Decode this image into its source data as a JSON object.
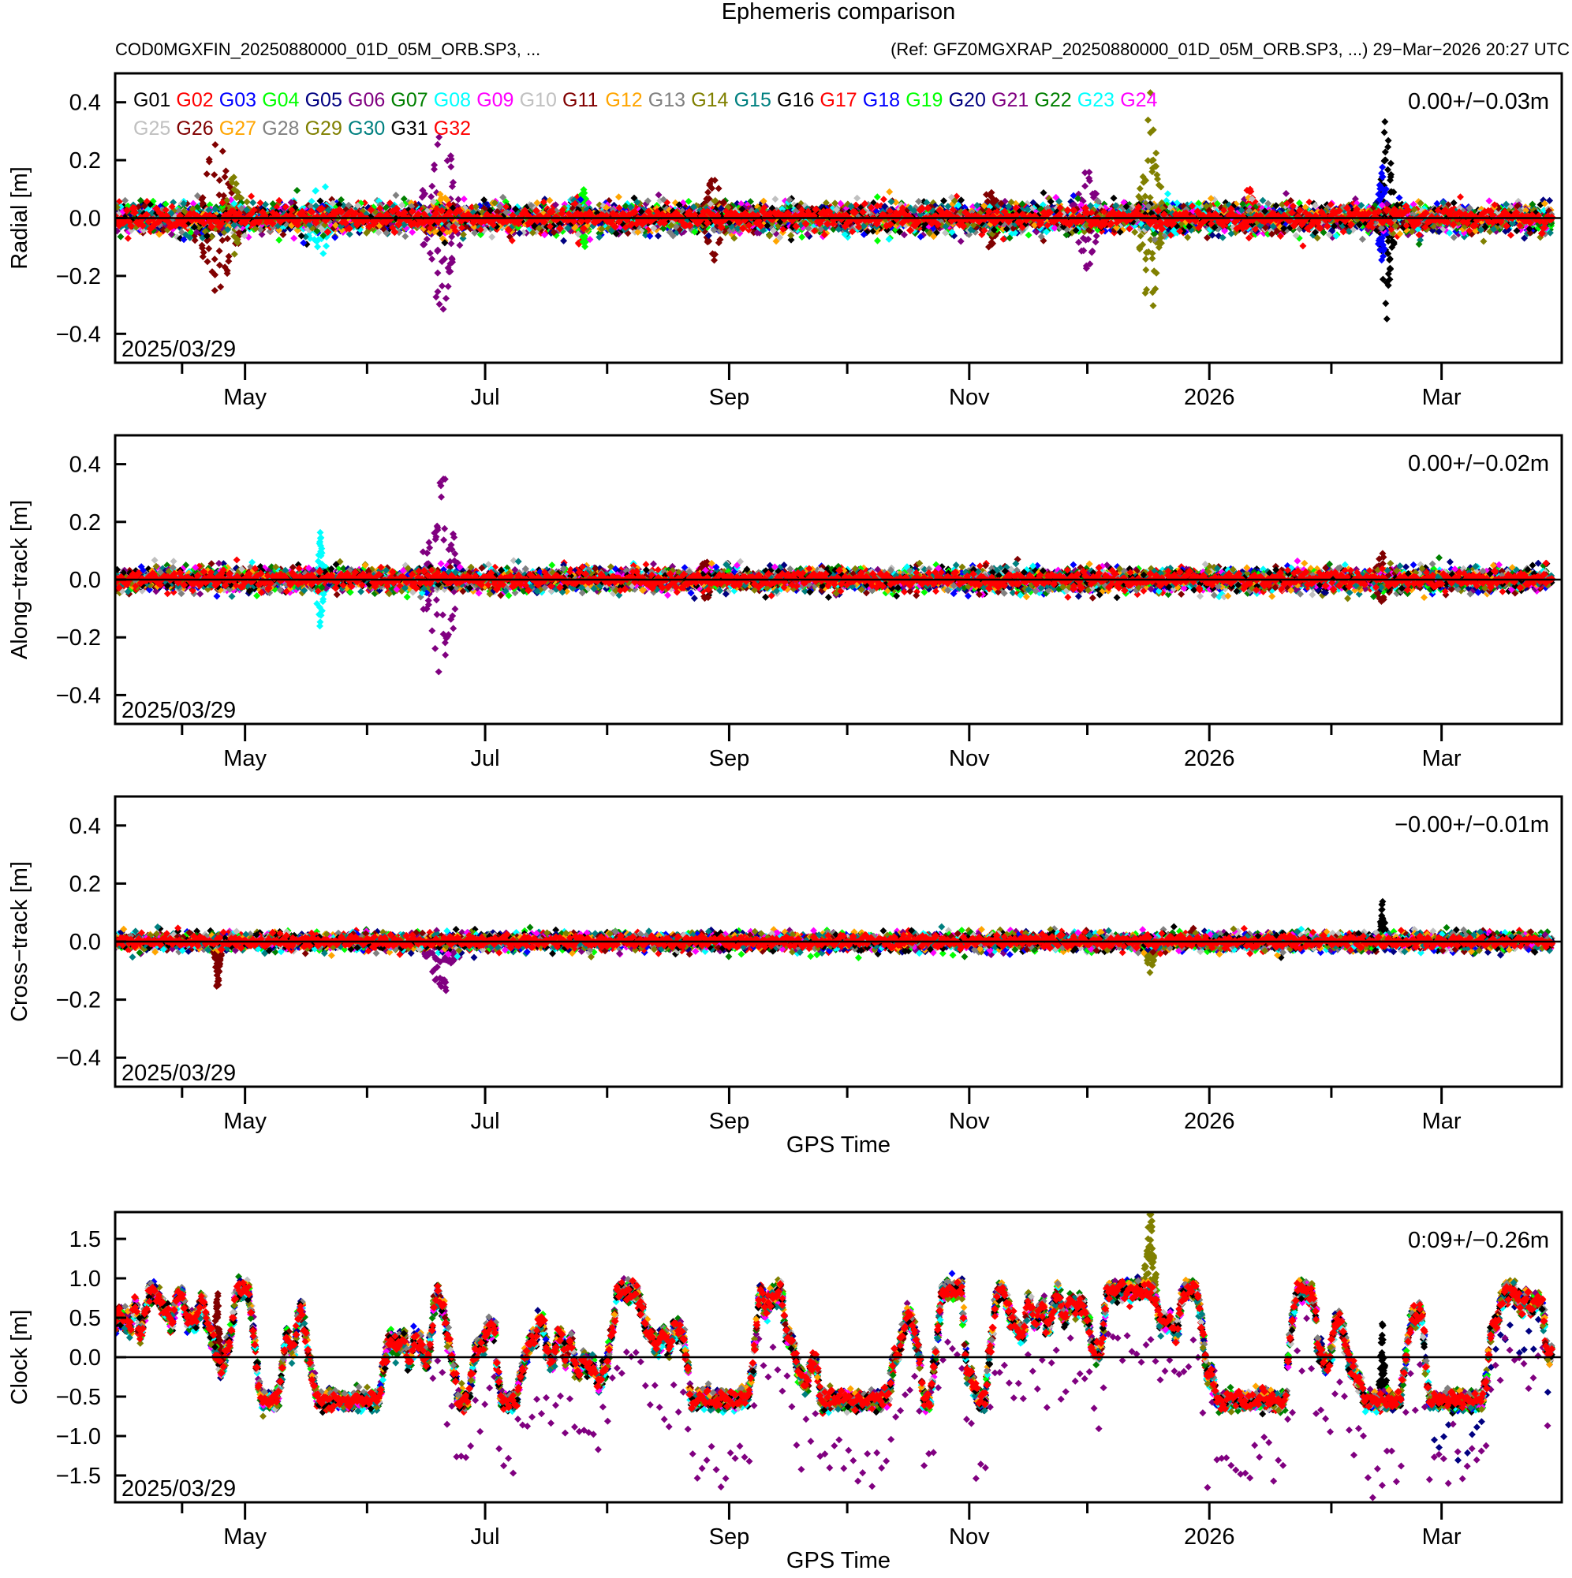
{
  "chart_data": {
    "type": "scatter",
    "title": "Ephemeris comparison",
    "subtitle_left": "COD0MGXFIN_20250880000_01D_05M_ORB.SP3, ...",
    "subtitle_right": "(Ref: GFZ0MGXRAP_20250880000_01D_05M_ORB.SP3, ...) 29−Mar−2026 20:27 UTC",
    "x_start_date": "2025-03-29",
    "x_end_date": "2026-03-29",
    "x_range_days": [
      0,
      365
    ],
    "x_minor_ticks": [
      "2025-04-15",
      "2025-06-01",
      "2025-08-01",
      "2025-10-01",
      "2025-12-01",
      "2026-02-01"
    ],
    "x_major_ticks": [
      {
        "date": "2025-05-01",
        "label": "May"
      },
      {
        "date": "2025-07-01",
        "label": "Jul"
      },
      {
        "date": "2025-09-01",
        "label": "Sep"
      },
      {
        "date": "2025-11-01",
        "label": "Nov"
      },
      {
        "date": "2026-01-01",
        "label": "2026"
      },
      {
        "date": "2026-03-01",
        "label": "Mar"
      }
    ],
    "legend": {
      "placement": "top-left",
      "entries": [
        {
          "name": "G01",
          "color": "#000000"
        },
        {
          "name": "G02",
          "color": "#ff0000"
        },
        {
          "name": "G03",
          "color": "#0000ff"
        },
        {
          "name": "G04",
          "color": "#00ff00"
        },
        {
          "name": "G05",
          "color": "#000080"
        },
        {
          "name": "G06",
          "color": "#800080"
        },
        {
          "name": "G07",
          "color": "#008000"
        },
        {
          "name": "G08",
          "color": "#00ffff"
        },
        {
          "name": "G09",
          "color": "#ff00ff"
        },
        {
          "name": "G10",
          "color": "#c0c0c0"
        },
        {
          "name": "G11",
          "color": "#800000"
        },
        {
          "name": "G12",
          "color": "#ffa500"
        },
        {
          "name": "G13",
          "color": "#808080"
        },
        {
          "name": "G14",
          "color": "#808000"
        },
        {
          "name": "G15",
          "color": "#008080"
        },
        {
          "name": "G16",
          "color": "#000000"
        },
        {
          "name": "G17",
          "color": "#ff0000"
        },
        {
          "name": "G18",
          "color": "#0000ff"
        },
        {
          "name": "G19",
          "color": "#00ff00"
        },
        {
          "name": "G20",
          "color": "#000080"
        },
        {
          "name": "G21",
          "color": "#800080"
        },
        {
          "name": "G22",
          "color": "#008000"
        },
        {
          "name": "G23",
          "color": "#00ffff"
        },
        {
          "name": "G24",
          "color": "#ff00ff"
        },
        {
          "name": "G25",
          "color": "#c0c0c0"
        },
        {
          "name": "G26",
          "color": "#800000"
        },
        {
          "name": "G27",
          "color": "#ffa500"
        },
        {
          "name": "G28",
          "color": "#808080"
        },
        {
          "name": "G29",
          "color": "#808000"
        },
        {
          "name": "G30",
          "color": "#008080"
        },
        {
          "name": "G31",
          "color": "#000000"
        },
        {
          "name": "G32",
          "color": "#ff0000"
        }
      ]
    },
    "panels": [
      {
        "name": "radial",
        "ylabel": "Radial [m]",
        "ylim": [
          -0.5,
          0.5
        ],
        "yticks": [
          0.4,
          0.2,
          0.0,
          -0.2,
          -0.4
        ],
        "ytick_labels": [
          "0.4",
          "0.2",
          "0.0",
          "−0.2",
          "−0.4"
        ],
        "stats_label": "0.00+/−0.03m",
        "date_label": "2025/03/29",
        "show_xlabel": false,
        "xlabel": "",
        "noise_sigma": 0.025,
        "excursions": [
          {
            "sat": "G11",
            "center_day": 26,
            "width_days": 12,
            "amplitude": 0.35
          },
          {
            "sat": "G14",
            "center_day": 30,
            "width_days": 8,
            "amplitude": 0.15
          },
          {
            "sat": "G08",
            "center_day": 52,
            "width_days": 10,
            "amplitude": 0.15
          },
          {
            "sat": "G06",
            "center_day": 83,
            "width_days": 10,
            "amplitude": 0.4
          },
          {
            "sat": "G12",
            "center_day": 83,
            "width_days": 8,
            "amplitude": 0.1
          },
          {
            "sat": "G04",
            "center_day": 119,
            "width_days": 4,
            "amplitude": 0.12
          },
          {
            "sat": "G02",
            "center_day": 118,
            "width_days": 6,
            "amplitude": 0.1
          },
          {
            "sat": "G11",
            "center_day": 152,
            "width_days": 8,
            "amplitude": 0.17
          },
          {
            "sat": "G11",
            "center_day": 222,
            "width_days": 8,
            "amplitude": 0.12
          },
          {
            "sat": "G06",
            "center_day": 247,
            "width_days": 8,
            "amplitude": 0.2
          },
          {
            "sat": "G08",
            "center_day": 268,
            "width_days": 8,
            "amplitude": 0.1
          },
          {
            "sat": "G14",
            "center_day": 263,
            "width_days": 6,
            "amplitude": 0.45
          },
          {
            "sat": "G02",
            "center_day": 288,
            "width_days": 6,
            "amplitude": 0.12
          },
          {
            "sat": "G01",
            "center_day": 323,
            "width_days": 4,
            "amplitude": 0.45
          },
          {
            "sat": "G03",
            "center_day": 322,
            "width_days": 4,
            "amplitude": 0.2
          }
        ]
      },
      {
        "name": "along-track",
        "ylabel": "Along−track [m]",
        "ylim": [
          -0.5,
          0.5
        ],
        "yticks": [
          0.4,
          0.2,
          0.0,
          -0.2,
          -0.4
        ],
        "ytick_labels": [
          "0.4",
          "0.2",
          "0.0",
          "−0.2",
          "−0.4"
        ],
        "stats_label": "0.00+/−0.02m",
        "date_label": "2025/03/29",
        "show_xlabel": false,
        "xlabel": "",
        "noise_sigma": 0.02,
        "excursions": [
          {
            "sat": "G08",
            "center_day": 52,
            "width_days": 3,
            "amplitude": 0.18
          },
          {
            "sat": "G06",
            "center_day": 83,
            "width_days": 10,
            "amplitude": 0.42
          },
          {
            "sat": "G11",
            "center_day": 150,
            "width_days": 6,
            "amplitude": 0.08
          },
          {
            "sat": "G11",
            "center_day": 322,
            "width_days": 6,
            "amplitude": 0.1
          }
        ]
      },
      {
        "name": "cross-track",
        "ylabel": "Cross−track [m]",
        "ylim": [
          -0.5,
          0.5
        ],
        "yticks": [
          0.4,
          0.2,
          0.0,
          -0.2,
          -0.4
        ],
        "ytick_labels": [
          "0.4",
          "0.2",
          "0.0",
          "−0.2",
          "−0.4"
        ],
        "stats_label": "−0.00+/−0.01m",
        "date_label": "2025/03/29",
        "show_xlabel": true,
        "xlabel": "GPS Time",
        "noise_sigma": 0.015,
        "excursions": [
          {
            "sat": "G11",
            "center_day": 26,
            "width_days": 2,
            "amplitude": -0.2
          },
          {
            "sat": "G06",
            "center_day": 83,
            "width_days": 9,
            "amplitude": -0.22
          },
          {
            "sat": "G14",
            "center_day": 263,
            "width_days": 4,
            "amplitude": -0.12
          },
          {
            "sat": "G01",
            "center_day": 322,
            "width_days": 2,
            "amplitude": 0.15
          }
        ]
      },
      {
        "name": "clock",
        "ylabel": "Clock [m]",
        "ylim": [
          -1.84,
          1.84
        ],
        "yticks": [
          1.5,
          1.0,
          0.5,
          0.0,
          -0.5,
          -1.0,
          -1.5
        ],
        "ytick_labels": [
          "1.5",
          "1.0",
          "0.5",
          "0.0",
          "−0.5",
          "−1.0",
          "−1.5"
        ],
        "stats_label": "0:09+/−0.26m",
        "date_label": "2025/03/29",
        "show_xlabel": true,
        "xlabel": "GPS Time",
        "common_signal_amplitude": 0.35,
        "offset_series": [
          {
            "sat": "G06",
            "start_day": 80,
            "offset": -0.8
          },
          {
            "sat": "G05",
            "start_day": 335,
            "offset": -0.4
          }
        ],
        "excursions": [
          {
            "sat": "G11",
            "center_day": 26,
            "width_days": 2,
            "amplitude": 0.9
          },
          {
            "sat": "G14",
            "center_day": 263,
            "width_days": 3,
            "amplitude": 1.3
          },
          {
            "sat": "G01",
            "center_day": 322,
            "width_days": 2,
            "amplitude": 1.1
          }
        ]
      }
    ]
  }
}
